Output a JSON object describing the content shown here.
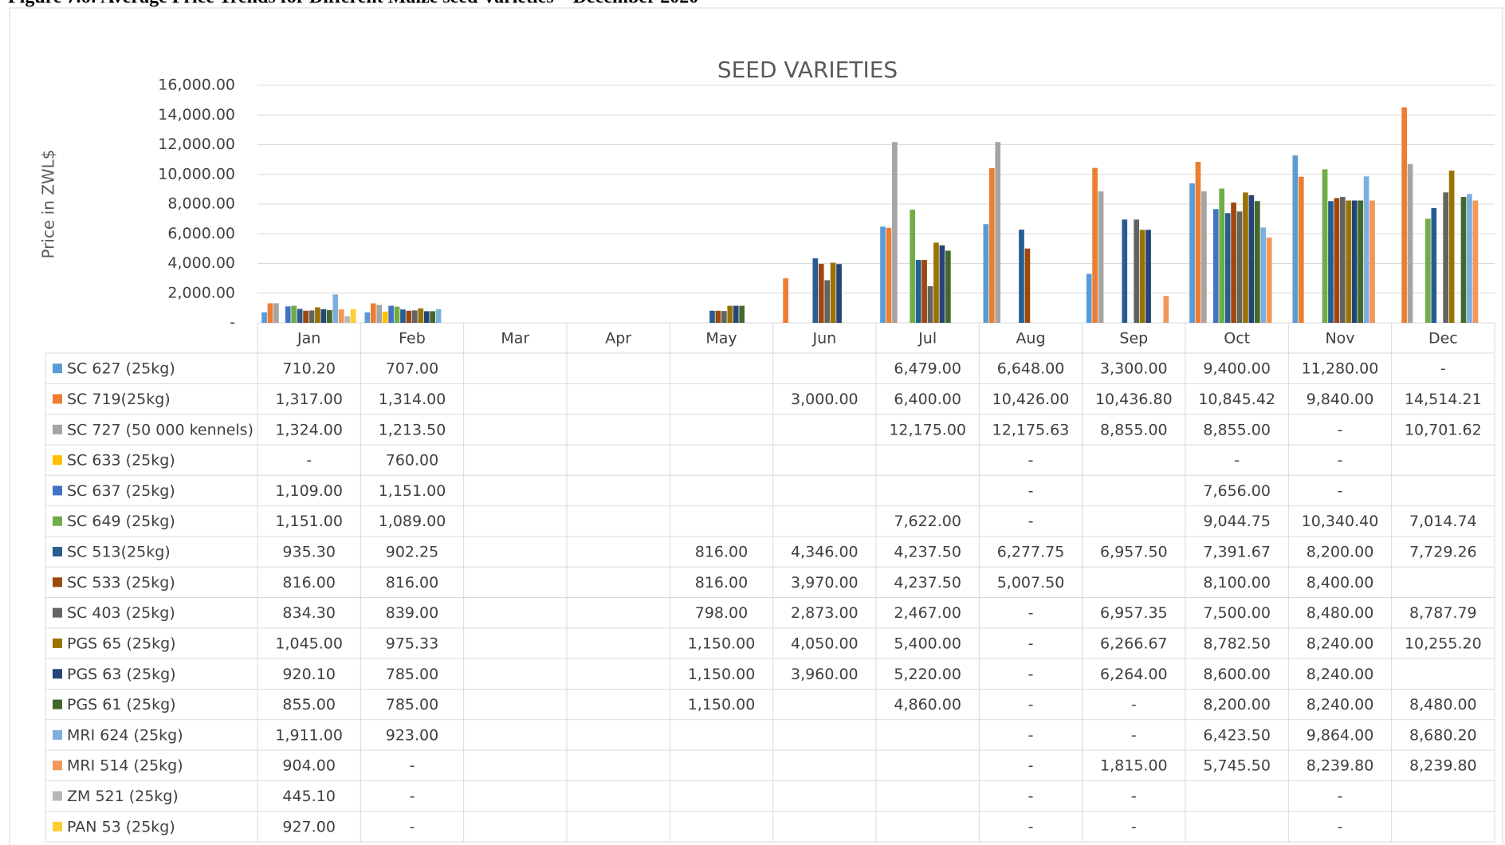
{
  "chart_data": {
    "type": "bar",
    "caption": "Figure 7.6: Average Price Trends for Different Maize seed Varieties – December 2020",
    "title": "SEED VARIETIES",
    "y_label": "Price in ZWL$",
    "categories": [
      "Jan",
      "Feb",
      "Mar",
      "Apr",
      "May",
      "Jun",
      "Jul",
      "Aug",
      "Sep",
      "Oct",
      "Nov",
      "Dec"
    ],
    "ylim": [
      0,
      16000
    ],
    "yticks": [
      {
        "value": 0,
        "label": "-"
      },
      {
        "value": 2000,
        "label": "2,000.00"
      },
      {
        "value": 4000,
        "label": "4,000.00"
      },
      {
        "value": 6000,
        "label": "6,000.00"
      },
      {
        "value": 8000,
        "label": "8,000.00"
      },
      {
        "value": 10000,
        "label": "10,000.00"
      },
      {
        "value": 12000,
        "label": "12,000.00"
      },
      {
        "value": 14000,
        "label": "14,000.00"
      },
      {
        "value": 16000,
        "label": "16,000.00"
      }
    ],
    "grid": true,
    "series": [
      {
        "name": "SC 627 (25kg)",
        "color": "#5B9BD5",
        "values": [
          710.2,
          707,
          null,
          null,
          null,
          null,
          6479,
          6648,
          3300,
          9400,
          11280,
          0
        ],
        "value_labels": [
          "710.20",
          "707.00",
          null,
          null,
          null,
          null,
          "6,479.00",
          "6,648.00",
          "3,300.00",
          "9,400.00",
          "11,280.00",
          "-"
        ]
      },
      {
        "name": "SC 719(25kg)",
        "color": "#ED7D31",
        "values": [
          1317,
          1314,
          null,
          null,
          null,
          3000,
          6400,
          10426,
          10436.8,
          10845.42,
          9840,
          14514.21
        ],
        "value_labels": [
          "1,317.00",
          "1,314.00",
          null,
          null,
          null,
          "3,000.00",
          "6,400.00",
          "10,426.00",
          "10,436.80",
          "10,845.42",
          "9,840.00",
          "14,514.21"
        ]
      },
      {
        "name": "SC 727 (50 000 kennels)",
        "color": "#A5A5A5",
        "values": [
          1324,
          1213.5,
          null,
          null,
          null,
          null,
          12175,
          12175.63,
          8855,
          8855,
          0,
          10701.62
        ],
        "value_labels": [
          "1,324.00",
          "1,213.50",
          null,
          null,
          null,
          null,
          "12,175.00",
          "12,175.63",
          "8,855.00",
          "8,855.00",
          "-",
          "10,701.62"
        ]
      },
      {
        "name": "SC 633 (25kg)",
        "color": "#FFC000",
        "values": [
          0,
          760,
          null,
          null,
          null,
          null,
          null,
          0,
          null,
          0,
          0,
          null
        ],
        "value_labels": [
          "-",
          "760.00",
          null,
          null,
          null,
          null,
          null,
          "-",
          null,
          "-",
          "-",
          null
        ]
      },
      {
        "name": "SC 637 (25kg)",
        "color": "#4472C4",
        "values": [
          1109,
          1151,
          null,
          null,
          null,
          null,
          null,
          0,
          null,
          7656,
          0,
          null
        ],
        "value_labels": [
          "1,109.00",
          "1,151.00",
          null,
          null,
          null,
          null,
          null,
          "-",
          null,
          "7,656.00",
          "-",
          null
        ]
      },
      {
        "name": "SC 649 (25kg)",
        "color": "#70AD47",
        "values": [
          1151,
          1089,
          null,
          null,
          null,
          null,
          7622,
          0,
          null,
          9044.75,
          10340.4,
          7014.74
        ],
        "value_labels": [
          "1,151.00",
          "1,089.00",
          null,
          null,
          null,
          null,
          "7,622.00",
          "-",
          null,
          "9,044.75",
          "10,340.40",
          "7,014.74"
        ]
      },
      {
        "name": "SC 513(25kg)",
        "color": "#255E91",
        "values": [
          935.3,
          902.25,
          null,
          null,
          816,
          4346,
          4237.5,
          6277.75,
          6957.5,
          7391.67,
          8200,
          7729.26
        ],
        "value_labels": [
          "935.30",
          "902.25",
          null,
          null,
          "816.00",
          "4,346.00",
          "4,237.50",
          "6,277.75",
          "6,957.50",
          "7,391.67",
          "8,200.00",
          "7,729.26"
        ]
      },
      {
        "name": "SC 533 (25kg)",
        "color": "#9E480E",
        "values": [
          816,
          816,
          null,
          null,
          816,
          3970,
          4237.5,
          5007.5,
          null,
          8100,
          8400,
          null
        ],
        "value_labels": [
          "816.00",
          "816.00",
          null,
          null,
          "816.00",
          "3,970.00",
          "4,237.50",
          "5,007.50",
          null,
          "8,100.00",
          "8,400.00",
          null
        ]
      },
      {
        "name": "SC 403 (25kg)",
        "color": "#636363",
        "values": [
          834.3,
          839,
          null,
          null,
          798,
          2873,
          2467,
          0,
          6957.35,
          7500,
          8480,
          8787.79
        ],
        "value_labels": [
          "834.30",
          "839.00",
          null,
          null,
          "798.00",
          "2,873.00",
          "2,467.00",
          "-",
          "6,957.35",
          "7,500.00",
          "8,480.00",
          "8,787.79"
        ]
      },
      {
        "name": "PGS 65 (25kg)",
        "color": "#997300",
        "values": [
          1045,
          975.33,
          null,
          null,
          1150,
          4050,
          5400,
          0,
          6266.67,
          8782.5,
          8240,
          10255.2
        ],
        "value_labels": [
          "1,045.00",
          "975.33",
          null,
          null,
          "1,150.00",
          "4,050.00",
          "5,400.00",
          "-",
          "6,266.67",
          "8,782.50",
          "8,240.00",
          "10,255.20"
        ]
      },
      {
        "name": "PGS 63 (25kg)",
        "color": "#264478",
        "values": [
          920.1,
          785,
          null,
          null,
          1150,
          3960,
          5220,
          0,
          6264,
          8600,
          8240,
          null
        ],
        "value_labels": [
          "920.10",
          "785.00",
          null,
          null,
          "1,150.00",
          "3,960.00",
          "5,220.00",
          "-",
          "6,264.00",
          "8,600.00",
          "8,240.00",
          null
        ]
      },
      {
        "name": "PGS 61 (25kg)",
        "color": "#43682B",
        "values": [
          855,
          785,
          null,
          null,
          1150,
          null,
          4860,
          0,
          0,
          8200,
          8240,
          8480
        ],
        "value_labels": [
          "855.00",
          "785.00",
          null,
          null,
          "1,150.00",
          null,
          "4,860.00",
          "-",
          "-",
          "8,200.00",
          "8,240.00",
          "8,480.00"
        ]
      },
      {
        "name": "MRI 624 (25kg)",
        "color": "#7CAFDD",
        "values": [
          1911,
          923,
          null,
          null,
          null,
          null,
          null,
          0,
          0,
          6423.5,
          9864,
          8680.2
        ],
        "value_labels": [
          "1,911.00",
          "923.00",
          null,
          null,
          null,
          null,
          null,
          "-",
          "-",
          "6,423.50",
          "9,864.00",
          "8,680.20"
        ]
      },
      {
        "name": "MRI 514 (25kg)",
        "color": "#F1975A",
        "values": [
          904,
          0,
          null,
          null,
          null,
          null,
          null,
          0,
          1815,
          5745.5,
          8239.8,
          8239.8
        ],
        "value_labels": [
          "904.00",
          "-",
          null,
          null,
          null,
          null,
          null,
          "-",
          "1,815.00",
          "5,745.50",
          "8,239.80",
          "8,239.80"
        ]
      },
      {
        "name": "ZM 521 (25kg)",
        "color": "#B7B7B7",
        "values": [
          445.1,
          0,
          null,
          null,
          null,
          null,
          null,
          0,
          0,
          null,
          0,
          null
        ],
        "value_labels": [
          "445.10",
          "-",
          null,
          null,
          null,
          null,
          null,
          "-",
          "-",
          null,
          "-",
          null
        ]
      },
      {
        "name": "PAN 53 (25kg)",
        "color": "#FFCD33",
        "values": [
          927,
          0,
          null,
          null,
          null,
          null,
          null,
          0,
          0,
          null,
          0,
          null
        ],
        "value_labels": [
          "927.00",
          "-",
          null,
          null,
          null,
          null,
          null,
          "-",
          "-",
          null,
          "-",
          null
        ]
      }
    ]
  }
}
